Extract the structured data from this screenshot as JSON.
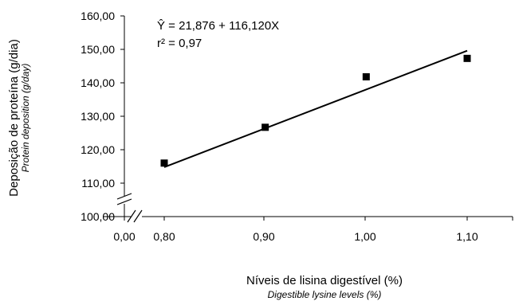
{
  "chart_data": {
    "type": "scatter",
    "equation_prefix": "Ŷ = 21,876 + 116,120X",
    "r2_label": "r² = 0,97",
    "ylabel": "Deposição de proteína (g/dia)",
    "ylabel_sub": "Protein deposition (g/day)",
    "xlabel": "Níveis de lisina digestível (%)",
    "xlabel_sub": "Digestible lysine levels (%)",
    "y_ticks": [
      "160,00",
      "150,00",
      "140,00",
      "130,00",
      "120,00",
      "110,00",
      "100,00"
    ],
    "y_tick_values": [
      160,
      150,
      140,
      130,
      120,
      110,
      100
    ],
    "x_ticks": [
      "0,00",
      "0,80",
      "0,90",
      "1,00",
      "1,10"
    ],
    "x_tick_values": [
      0.0,
      0.8,
      0.9,
      1.0,
      1.1
    ],
    "ylim": [
      100,
      160
    ],
    "points": [
      {
        "x": 0.8,
        "y": 116.0
      },
      {
        "x": 0.9,
        "y": 126.7
      },
      {
        "x": 1.0,
        "y": 141.8
      },
      {
        "x": 1.1,
        "y": 147.3
      }
    ],
    "regression": {
      "intercept": 21.876,
      "slope": 116.12,
      "x_range": [
        0.8,
        1.1
      ]
    },
    "axis_break": true,
    "grid": false,
    "legend": "none",
    "colors": {
      "marker": "#000000",
      "line": "#000000"
    }
  }
}
